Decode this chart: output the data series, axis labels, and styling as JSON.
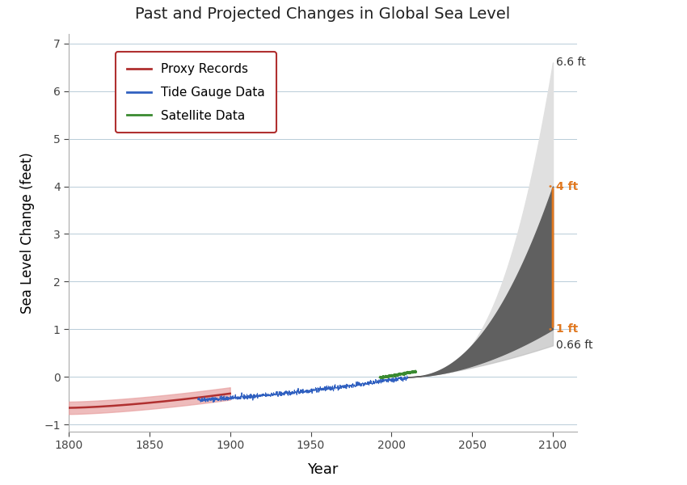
{
  "title": "Past and Projected Changes in Global Sea Level",
  "xlabel": "Year",
  "ylabel": "Sea Level Change (feet)",
  "xlim": [
    1800,
    2115
  ],
  "ylim": [
    -1.15,
    7.2
  ],
  "yticks": [
    -1,
    0,
    1,
    2,
    3,
    4,
    5,
    6,
    7
  ],
  "xticks": [
    1800,
    1850,
    1900,
    1950,
    2000,
    2050,
    2100
  ],
  "proxy_color": "#b03030",
  "proxy_band_color": "#e8a0a0",
  "tide_color": "#3060c0",
  "satellite_color": "#3a8a30",
  "proj_dark_color": "#606060",
  "proj_light_color": "#c8c8c8",
  "annotation_color": "#e07820",
  "proxy_start_year": 1800,
  "proxy_end_year": 1900,
  "tide_start_year": 1880,
  "tide_end_year": 2010,
  "satellite_start_year": 1993,
  "satellite_end_year": 2015,
  "proj_start_year": 2010,
  "proj_end_year": 2100,
  "label_66ft": "6.6 ft",
  "label_4ft": "4 ft",
  "label_1ft": "1 ft",
  "label_066ft": "0.66 ft",
  "legend_labels": [
    "Proxy Records",
    "Tide Gauge Data",
    "Satellite Data"
  ],
  "background_color": "#ffffff"
}
